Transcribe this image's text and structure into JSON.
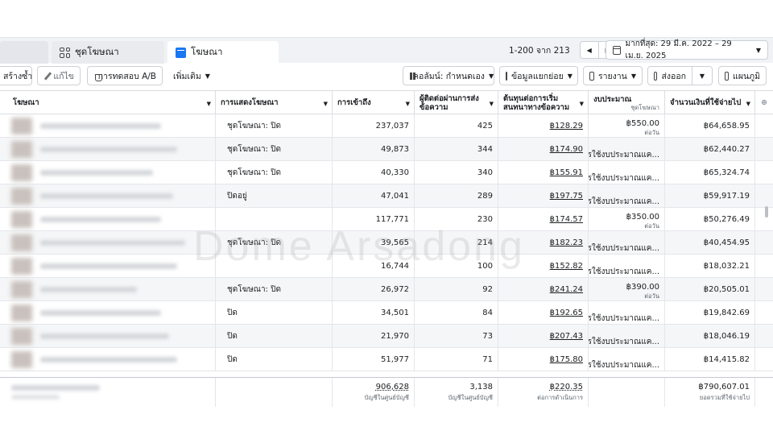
{
  "tabs": [
    {
      "label": ""
    },
    {
      "label": "ชุดโฆษณา"
    },
    {
      "label": "โฆษณา"
    }
  ],
  "pager": {
    "range": "1-200 จาก 213"
  },
  "date_range": "มากที่สุด: 29 มี.ค. 2022 – 29 เม.ย. 2025",
  "toolbar": {
    "duplicate": "สร้างซ้ำ",
    "edit": "แก้ไข",
    "ab_test": "การทดสอบ A/B",
    "more": "เพิ่มเติม",
    "columns": "คอลัมน์: กำหนดเอง",
    "breakdown": "ข้อมูลแยกย่อย",
    "reports": "รายงาน",
    "export": "ส่งออก",
    "charts": "แผนภูมิ"
  },
  "columns": {
    "ad": "โฆษณา",
    "delivery": "การแสดงโฆษณา",
    "reach": "การเข้าถึง",
    "contacts": "ผู้ติดต่อผ่านการส่งข้อความ",
    "cost": "ต้นทุนต่อการเริ่มสนทนาทางข้อความ",
    "budget": "งบประมาณ",
    "budget_sub": "ชุดโฆษณา",
    "spent": "จำนวนเงินที่ใช้จ่ายไป"
  },
  "rows": [
    {
      "delivery": "ชุดโฆษณา: ปิด",
      "reach": "237,037",
      "contacts": "425",
      "cost": "฿128.29",
      "budget": "฿550.00",
      "budget_per": "ต่อวัน",
      "spent": "฿64,658.95"
    },
    {
      "delivery": "ชุดโฆษณา: ปิด",
      "reach": "49,873",
      "contacts": "344",
      "cost": "฿174.90",
      "budget": "การใช้งบประมาณแค...",
      "budget_per": "",
      "spent": "฿62,440.27"
    },
    {
      "delivery": "ชุดโฆษณา: ปิด",
      "reach": "40,330",
      "contacts": "340",
      "cost": "฿155.91",
      "budget": "การใช้งบประมาณแค...",
      "budget_per": "",
      "spent": "฿65,324.74"
    },
    {
      "delivery": "ปิดอยู่",
      "reach": "47,041",
      "contacts": "289",
      "cost": "฿197.75",
      "budget": "การใช้งบประมาณแค...",
      "budget_per": "",
      "spent": "฿59,917.19"
    },
    {
      "delivery": "",
      "reach": "117,771",
      "contacts": "230",
      "cost": "฿174.57",
      "budget": "฿350.00",
      "budget_per": "ต่อวัน",
      "spent": "฿50,276.49"
    },
    {
      "delivery": "ชุดโฆษณา: ปิด",
      "reach": "39,565",
      "contacts": "214",
      "cost": "฿182.23",
      "budget": "การใช้งบประมาณแค...",
      "budget_per": "",
      "spent": "฿40,454.95"
    },
    {
      "delivery": "",
      "reach": "16,744",
      "contacts": "100",
      "cost": "฿152.82",
      "budget": "การใช้งบประมาณแค...",
      "budget_per": "",
      "spent": "฿18,032.21"
    },
    {
      "delivery": "ชุดโฆษณา: ปิด",
      "reach": "26,972",
      "contacts": "92",
      "cost": "฿241.24",
      "budget": "฿390.00",
      "budget_per": "ต่อวัน",
      "spent": "฿20,505.01"
    },
    {
      "delivery": "ปิด",
      "reach": "34,501",
      "contacts": "84",
      "cost": "฿192.65",
      "budget": "การใช้งบประมาณแค...",
      "budget_per": "",
      "spent": "฿19,842.69"
    },
    {
      "delivery": "ปิด",
      "reach": "21,970",
      "contacts": "73",
      "cost": "฿207.43",
      "budget": "การใช้งบประมาณแค...",
      "budget_per": "",
      "spent": "฿18,046.19"
    },
    {
      "delivery": "ปิด",
      "reach": "51,977",
      "contacts": "71",
      "cost": "฿175.80",
      "budget": "การใช้งบประมาณแค...",
      "budget_per": "",
      "spent": "฿14,415.82"
    }
  ],
  "totals": {
    "reach": "906,628",
    "reach_cap": "บัญชีในศูนย์บัญชี",
    "contacts": "3,138",
    "contacts_cap": "บัญชีในศูนย์บัญชี",
    "cost": "฿220.35",
    "cost_cap": "ต่อการดำเนินการ",
    "spent": "฿790,607.01",
    "spent_cap": "ยอดรวมที่ใช้จ่ายไป"
  },
  "watermark": "Dome Arsadong"
}
